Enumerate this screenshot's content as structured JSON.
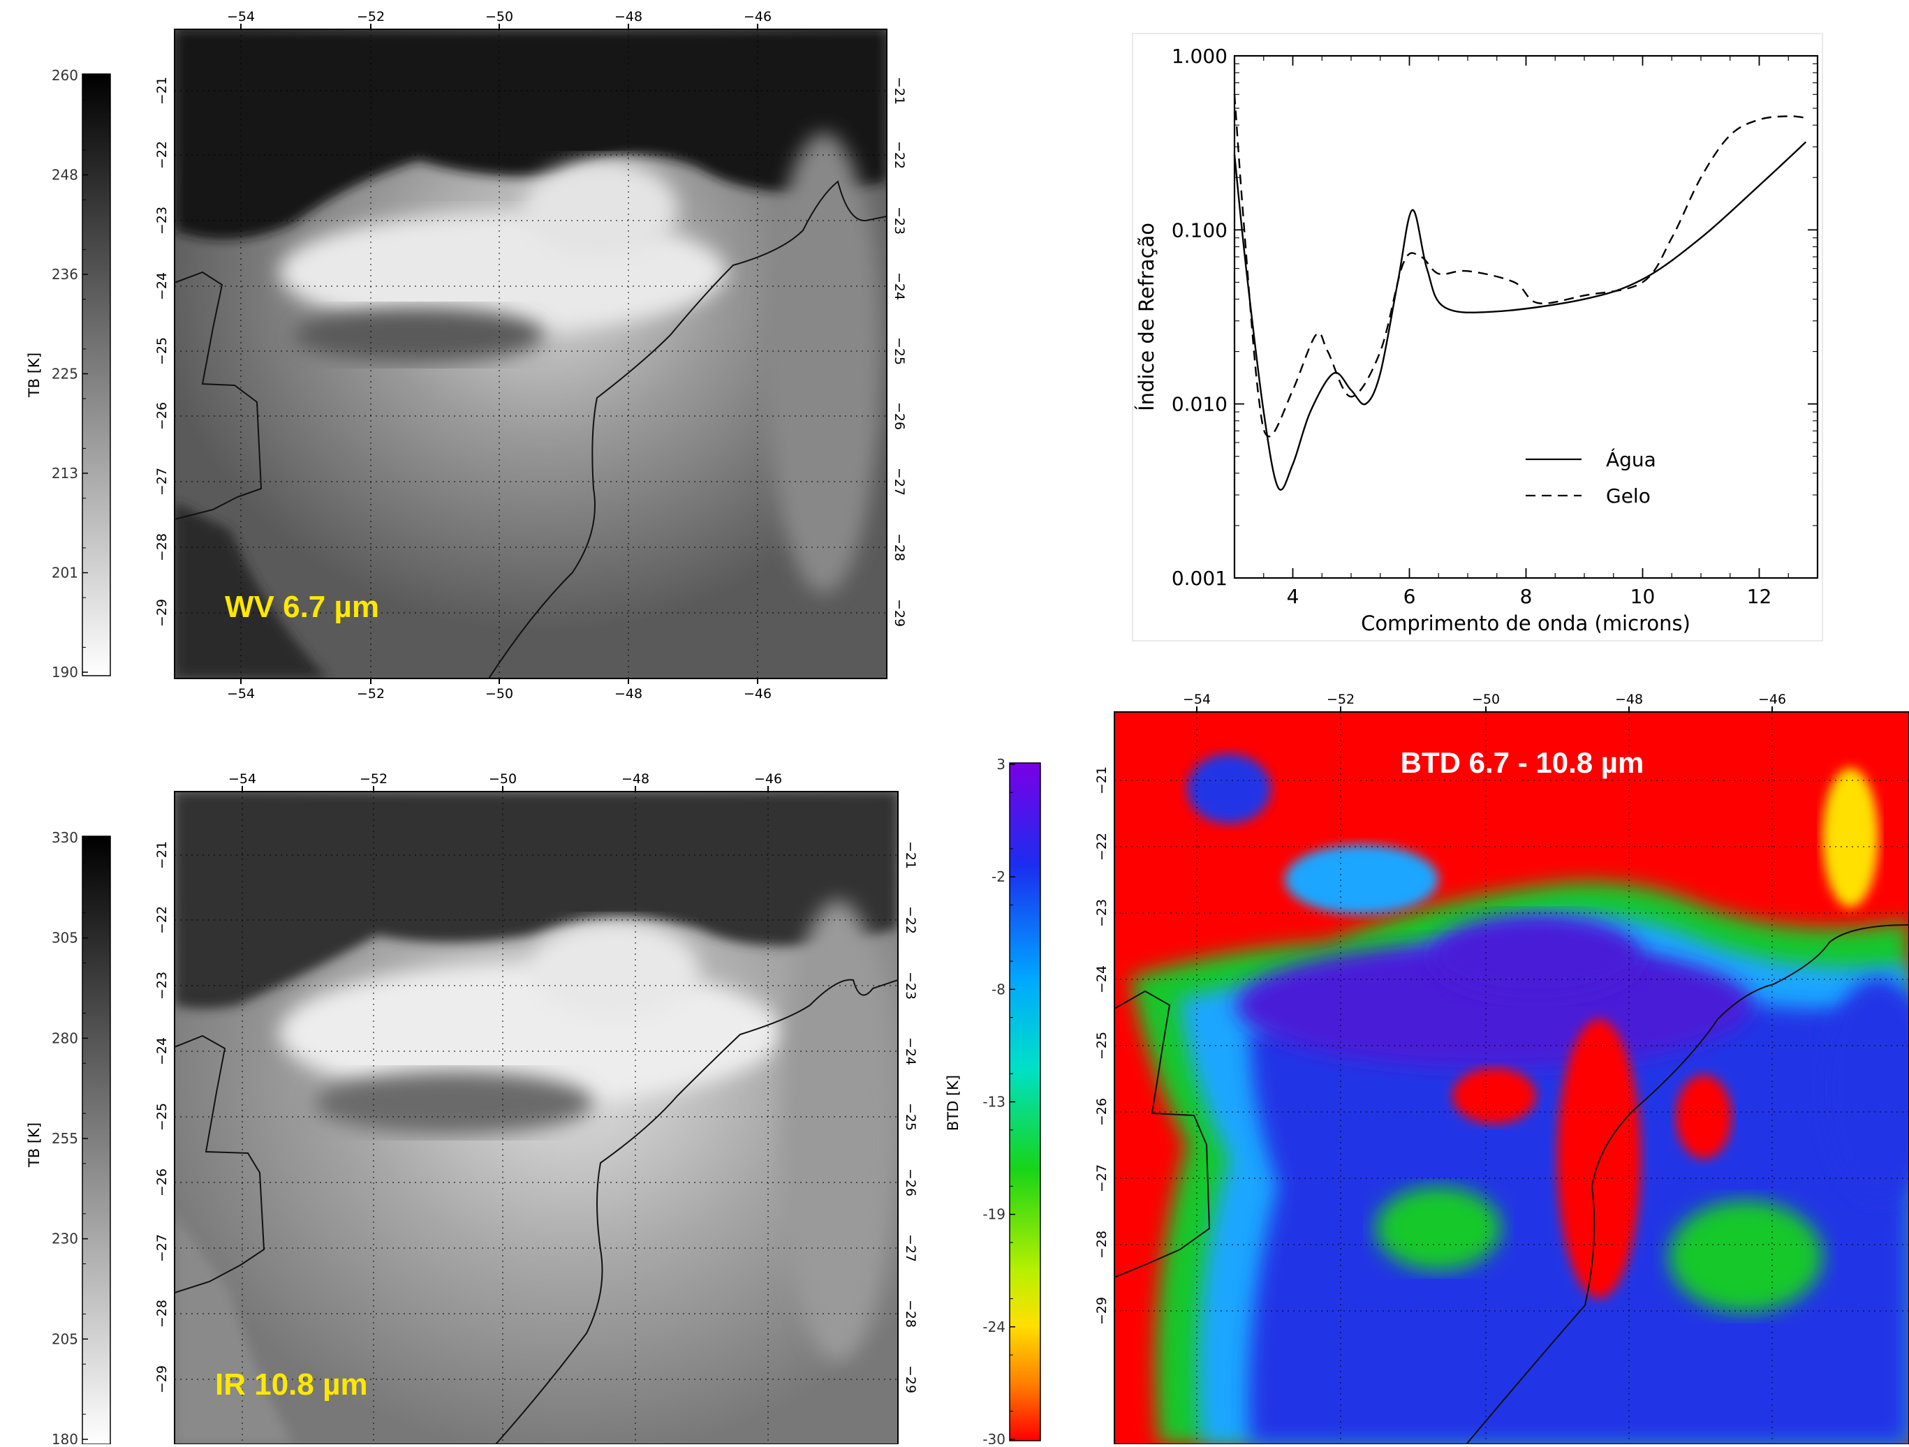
{
  "colors": {
    "label_yellow": "#ffe800",
    "btd_red": "#ff0000",
    "btd_blue": "#2236e6",
    "btd_violet": "#4a1ad8",
    "btd_green": "#33d640",
    "coastline": "#111111"
  },
  "panels": {
    "wv": {
      "label": "WV 6.7 µm",
      "colorbar": {
        "title": "TB [K]",
        "ticks": [
          "260",
          "248",
          "236",
          "225",
          "213",
          "201",
          "190"
        ]
      }
    },
    "ir": {
      "label": "IR 10.8 µm",
      "colorbar": {
        "title": "TB [K]",
        "ticks": [
          "330",
          "305",
          "280",
          "255",
          "230",
          "205",
          "180"
        ]
      }
    },
    "btd": {
      "label": "BTD 6.7 - 10.8 µm",
      "colorbar": {
        "title": "BTD [K]",
        "ticks": [
          "3",
          "-2",
          "-8",
          "-13",
          "-19",
          "-24",
          "-30"
        ]
      }
    },
    "map_axes": {
      "lon_ticks": [
        "−54",
        "−52",
        "−50",
        "−48",
        "−46"
      ],
      "lat_ticks": [
        "−21",
        "−22",
        "−23",
        "−24",
        "−25",
        "−26",
        "−27",
        "−28",
        "−29"
      ]
    }
  },
  "chart_data": [
    {
      "type": "line",
      "title": "",
      "xlabel": "Comprimento de onda (microns)",
      "ylabel": "Índice de Refração",
      "x_ticks": [
        "4",
        "6",
        "8",
        "10",
        "12"
      ],
      "y_ticks": [
        "1.000",
        "0.100",
        "0.010",
        "0.001"
      ],
      "xlim": [
        3,
        13
      ],
      "ylim": [
        0.001,
        1.0
      ],
      "yscale": "log",
      "legend": "bottom-right",
      "series": [
        {
          "name": "Água",
          "style": "solid",
          "x": [
            3.0,
            3.2,
            3.5,
            3.75,
            4.0,
            4.3,
            4.7,
            5.0,
            5.25,
            5.5,
            5.8,
            6.05,
            6.3,
            6.6,
            7.5,
            9.0,
            10.0,
            11.0,
            12.0,
            12.8
          ],
          "y": [
            0.27,
            0.06,
            0.009,
            0.0033,
            0.0045,
            0.009,
            0.015,
            0.012,
            0.01,
            0.015,
            0.05,
            0.13,
            0.06,
            0.036,
            0.034,
            0.04,
            0.052,
            0.09,
            0.18,
            0.32
          ]
        },
        {
          "name": "Gelo",
          "style": "dashed",
          "x": [
            3.0,
            3.15,
            3.4,
            3.6,
            4.0,
            4.4,
            4.6,
            5.0,
            5.5,
            5.9,
            6.2,
            6.5,
            7.0,
            7.8,
            8.2,
            9.0,
            10.0,
            10.5,
            11.0,
            11.5,
            12.0,
            12.5,
            12.8
          ],
          "y": [
            0.6,
            0.12,
            0.012,
            0.0065,
            0.012,
            0.025,
            0.02,
            0.011,
            0.02,
            0.065,
            0.07,
            0.056,
            0.058,
            0.05,
            0.038,
            0.042,
            0.05,
            0.09,
            0.2,
            0.35,
            0.43,
            0.45,
            0.44
          ]
        }
      ]
    }
  ]
}
